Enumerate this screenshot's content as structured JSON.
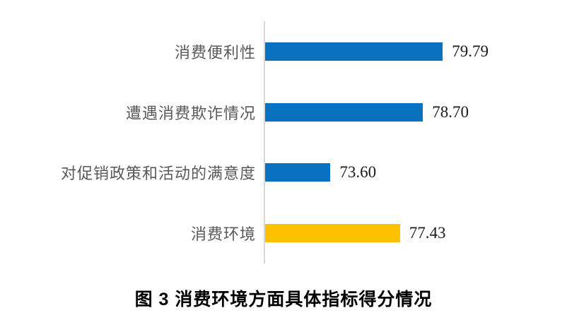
{
  "chart_data": {
    "type": "bar",
    "orientation": "horizontal",
    "title": "图 3 消费环境方面具体指标得分情况",
    "xlabel": "",
    "ylabel": "",
    "categories": [
      "消费便利性",
      "遭遇消费欺诈情况",
      "对促销政策和活动的满意度",
      "消费环境"
    ],
    "values": [
      79.79,
      78.7,
      73.6,
      77.43
    ],
    "value_labels": [
      "79.79",
      "78.70",
      "73.60",
      "77.43"
    ],
    "bar_colors": [
      "#0a71c0",
      "#0a71c0",
      "#0a71c0",
      "#ffc000"
    ],
    "xlim": [
      70,
      85
    ],
    "grid": false,
    "legend": false,
    "colors": {
      "bar_blue": "#0a71c0",
      "bar_gold": "#ffc000",
      "axis_line": "#d8d8d8",
      "category_label": "#595959",
      "value_label": "#1a1a1a",
      "caption": "#000000"
    }
  }
}
